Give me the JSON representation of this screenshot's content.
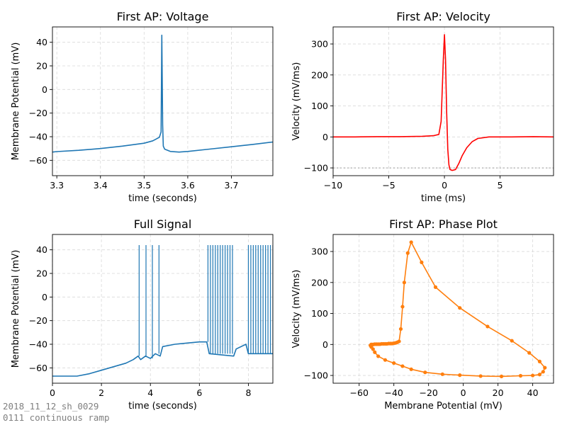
{
  "figure": {
    "footnote_line1": "2018_11_12_sh_0029",
    "footnote_line2": "0111 continuous ramp"
  },
  "chart_data": [
    {
      "id": "voltage",
      "type": "line",
      "title": "First AP: Voltage",
      "xlabel": "time (seconds)",
      "ylabel": "Membrane Potential (mV)",
      "xlim": [
        3.29,
        3.795
      ],
      "ylim": [
        -73,
        53
      ],
      "xticks": [
        3.3,
        3.4,
        3.5,
        3.6,
        3.7
      ],
      "xtick_labels": [
        "3.3",
        "3.4",
        "3.5",
        "3.6",
        "3.7"
      ],
      "yticks": [
        -60,
        -40,
        -20,
        0,
        20,
        40
      ],
      "ytick_labels": [
        "−60",
        "−40",
        "−20",
        "0",
        "20",
        "40"
      ],
      "grid": true,
      "series": [
        {
          "color": "#1f77b4",
          "x": [
            3.29,
            3.3,
            3.35,
            3.4,
            3.45,
            3.5,
            3.52,
            3.535,
            3.539,
            3.5405,
            3.5415,
            3.5425,
            3.544,
            3.547,
            3.55,
            3.56,
            3.58,
            3.6,
            3.65,
            3.7,
            3.75,
            3.795
          ],
          "y": [
            -53,
            -52.6,
            -51.5,
            -50,
            -48,
            -45.5,
            -43.5,
            -40.5,
            -36,
            46,
            10,
            -30,
            -48,
            -50.5,
            -51,
            -52.5,
            -53,
            -52.5,
            -50.5,
            -48.5,
            -46.5,
            -44.5
          ]
        }
      ]
    },
    {
      "id": "velocity",
      "type": "line",
      "title": "First AP: Velocity",
      "xlabel": "time (ms)",
      "ylabel": "Velocity (mV/ms)",
      "xlim": [
        -10,
        9.8
      ],
      "ylim": [
        -125,
        355
      ],
      "xticks": [
        -10,
        -5,
        0,
        5
      ],
      "xtick_labels": [
        "−10",
        "−5",
        "0",
        "5"
      ],
      "yticks": [
        -100,
        0,
        100,
        200,
        300
      ],
      "ytick_labels": [
        "−100",
        "0",
        "100",
        "200",
        "300"
      ],
      "grid": true,
      "reference_line": {
        "y": -100,
        "color": "#bbbbbb",
        "style": "dotted"
      },
      "series": [
        {
          "color": "#ff0000",
          "x": [
            -10,
            -8,
            -6,
            -4,
            -2,
            -1,
            -0.5,
            -0.3,
            -0.1,
            0,
            0.1,
            0.2,
            0.3,
            0.4,
            0.5,
            0.7,
            1,
            1.3,
            1.6,
            2,
            2.5,
            3,
            4,
            6,
            8,
            9.8
          ],
          "y": [
            0,
            0,
            1,
            1,
            2,
            4,
            8,
            50,
            250,
            330,
            250,
            80,
            -40,
            -90,
            -105,
            -108,
            -105,
            -85,
            -60,
            -35,
            -15,
            -5,
            0,
            0,
            1,
            0
          ]
        }
      ]
    },
    {
      "id": "full-signal",
      "type": "line",
      "title": "Full Signal",
      "xlabel": "time (seconds)",
      "ylabel": "Membrane Potential (mV)",
      "xlim": [
        0,
        9
      ],
      "ylim": [
        -73,
        53
      ],
      "xticks": [
        0,
        2,
        4,
        6,
        8
      ],
      "xtick_labels": [
        "0",
        "2",
        "4",
        "6",
        "8"
      ],
      "yticks": [
        -60,
        -40,
        -20,
        0,
        20,
        40
      ],
      "ytick_labels": [
        "−60",
        "−40",
        "−20",
        "0",
        "20",
        "40"
      ],
      "grid": true,
      "spikes": [
        3.54,
        3.82,
        4.08,
        4.35,
        6.35,
        6.45,
        6.55,
        6.65,
        6.75,
        6.85,
        6.95,
        7.05,
        7.15,
        7.25,
        7.35,
        8.0,
        8.1,
        8.2,
        8.3,
        8.4,
        8.5,
        8.6,
        8.7,
        8.8,
        8.9,
        9.0
      ],
      "series": [
        {
          "color": "#1f77b4",
          "x": [
            0,
            1.0,
            1.5,
            2.0,
            2.5,
            3.0,
            3.3,
            3.5,
            3.6,
            3.8,
            4.0,
            4.2,
            4.4,
            4.5,
            5.0,
            5.5,
            6.0,
            6.3,
            6.4,
            7.4,
            7.5,
            7.9,
            8.0,
            9.0
          ],
          "y": [
            -67,
            -67,
            -65,
            -62,
            -59,
            -56,
            -53,
            -50,
            -53,
            -50,
            -52,
            -48,
            -50,
            -42,
            -40,
            -39,
            -38,
            -38,
            -48,
            -50,
            -44,
            -40,
            -48,
            -48
          ]
        }
      ]
    },
    {
      "id": "phase",
      "type": "line",
      "title": "First AP: Phase Plot",
      "xlabel": "Membrane Potential (mV)",
      "ylabel": "Velocity (mV/ms)",
      "xlim": [
        -75,
        52
      ],
      "ylim": [
        -125,
        355
      ],
      "xticks": [
        -60,
        -40,
        -20,
        0,
        20,
        40
      ],
      "xtick_labels": [
        "−60",
        "−40",
        "−20",
        "0",
        "20",
        "40"
      ],
      "yticks": [
        -100,
        0,
        100,
        200,
        300
      ],
      "ytick_labels": [
        "−100",
        "0",
        "100",
        "200",
        "300"
      ],
      "grid": true,
      "series": [
        {
          "color": "#ff7f0e",
          "markers": true,
          "x": [
            -53,
            -52,
            -51,
            -50,
            -49,
            -48,
            -47,
            -46,
            -45,
            -44,
            -43,
            -42,
            -41,
            -40,
            -39,
            -38,
            -37,
            -36,
            -35,
            -34,
            -32,
            -30,
            -24,
            -16,
            -2,
            14,
            28,
            38,
            44,
            47,
            46,
            44,
            40,
            33,
            22,
            10,
            -2,
            -12,
            -22,
            -30,
            -35,
            -40,
            -45,
            -49,
            -51,
            -52,
            -53,
            -53.5,
            -53,
            -52
          ],
          "y": [
            0,
            0,
            1,
            1,
            1,
            1,
            2,
            2,
            2,
            2,
            3,
            3,
            3,
            4,
            5,
            7,
            10,
            50,
            122,
            200,
            295,
            330,
            265,
            185,
            118,
            58,
            12,
            -27,
            -55,
            -75,
            -88,
            -97,
            -100,
            -101,
            -103,
            -102,
            -99,
            -96,
            -90,
            -80,
            -70,
            -60,
            -50,
            -38,
            -25,
            -15,
            -8,
            -3,
            0,
            0
          ]
        }
      ]
    }
  ]
}
